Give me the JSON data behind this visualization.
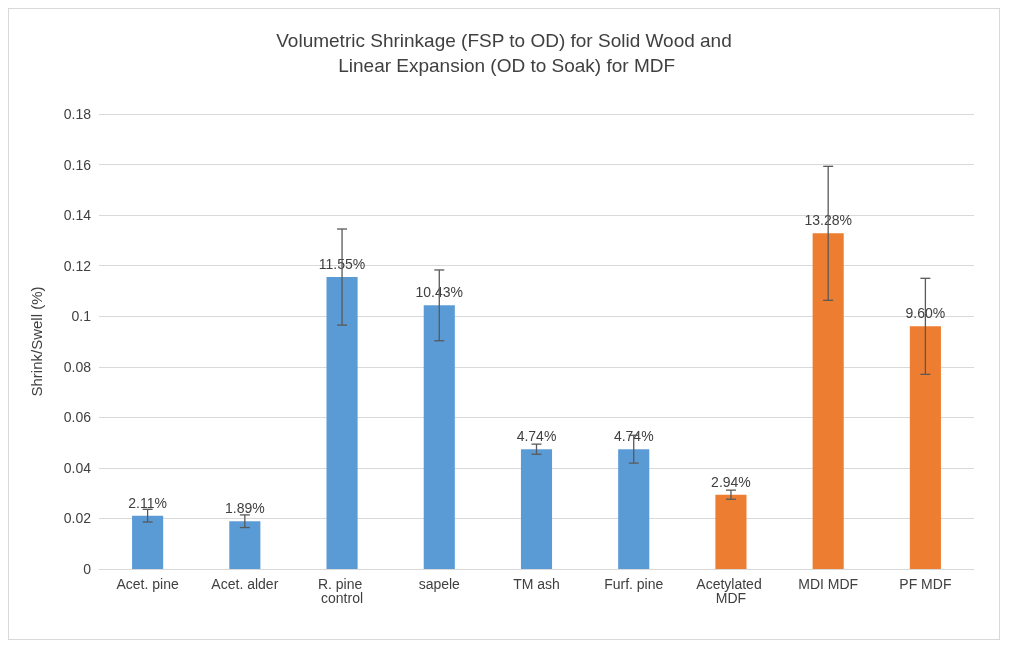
{
  "chart_data": {
    "type": "bar",
    "title": "Volumetric Shrinkage (FSP to OD) for Solid Wood and Linear Expansion (OD to Soak) for MDF",
    "ylabel": "Shrink/Swell (%)",
    "categories": [
      "Acet. pine",
      "Acet. alder",
      "R. pine control",
      "sapele",
      "TM ash",
      "Furf. pine",
      "Acetylated MDF",
      "MDI MDF",
      "PF MDF"
    ],
    "values": [
      0.0211,
      0.0189,
      0.1155,
      0.1043,
      0.0474,
      0.0474,
      0.0294,
      0.1328,
      0.096
    ],
    "colors": [
      "#5b9bd5",
      "#5b9bd5",
      "#5b9bd5",
      "#5b9bd5",
      "#5b9bd5",
      "#5b9bd5",
      "#ed7d31",
      "#ed7d31",
      "#ed7d31"
    ],
    "errors": [
      0.0025,
      0.0025,
      0.019,
      0.014,
      0.002,
      0.0055,
      0.0018,
      0.0265,
      0.019
    ],
    "value_labels": [
      "2.11%",
      "1.89%",
      "11.55%",
      "10.43%",
      "4.74%",
      "4.74%",
      "2.94%",
      "13.28%",
      "9.60%"
    ],
    "ylim": [
      0,
      0.18
    ],
    "yticks": [
      0,
      0.02,
      0.04,
      0.06,
      0.08,
      0.1,
      0.12,
      0.14,
      0.16,
      0.18
    ],
    "grid": "y"
  }
}
